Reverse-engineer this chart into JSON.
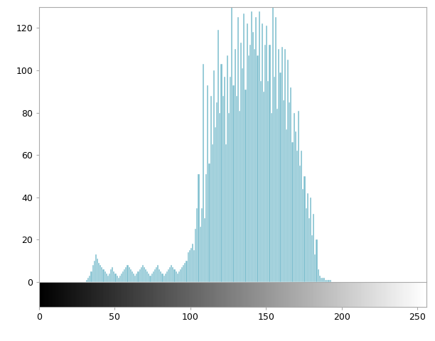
{
  "bar_color": "#7fbfcf",
  "bar_edge_color": "#ffffff",
  "bar_edge_linewidth": 0.3,
  "xlim": [
    0,
    256
  ],
  "xticks": [
    0,
    50,
    100,
    150,
    200,
    250
  ],
  "yticks": [
    0,
    20,
    40,
    60,
    80,
    100,
    120
  ],
  "background_color": "#ffffff",
  "figsize": [
    6.12,
    4.8
  ],
  "dpi": 100,
  "hist_values": [
    0,
    0,
    0,
    0,
    0,
    0,
    0,
    0,
    0,
    0,
    0,
    0,
    0,
    0,
    0,
    0,
    0,
    0,
    0,
    0,
    0,
    0,
    0,
    0,
    0,
    0,
    0,
    0,
    0,
    0,
    0,
    1,
    2,
    3,
    5,
    8,
    10,
    13,
    11,
    9,
    8,
    7,
    6,
    5,
    4,
    3,
    4,
    6,
    7,
    5,
    4,
    3,
    2,
    3,
    4,
    5,
    6,
    7,
    8,
    7,
    6,
    5,
    4,
    3,
    4,
    5,
    6,
    7,
    8,
    7,
    6,
    5,
    4,
    3,
    4,
    5,
    6,
    7,
    8,
    6,
    5,
    4,
    3,
    4,
    5,
    6,
    7,
    8,
    7,
    6,
    5,
    4,
    5,
    6,
    7,
    8,
    9,
    10,
    14,
    15,
    16,
    18,
    15,
    25,
    35,
    51,
    26,
    35,
    103,
    30,
    51,
    93,
    56,
    88,
    65,
    100,
    73,
    85,
    119,
    80,
    103,
    88,
    97,
    65,
    107,
    80,
    97,
    130,
    93,
    110,
    88,
    125,
    81,
    113,
    101,
    127,
    91,
    122,
    107,
    112,
    128,
    118,
    110,
    125,
    107,
    128,
    95,
    122,
    90,
    112,
    121,
    95,
    112,
    80,
    130,
    97,
    125,
    82,
    110,
    99,
    111,
    86,
    110,
    72,
    105,
    85,
    92,
    66,
    80,
    71,
    62,
    81,
    55,
    62,
    44,
    50,
    35,
    42,
    30,
    40,
    22,
    32,
    13,
    20,
    6,
    3,
    2,
    2,
    2,
    1,
    1,
    1,
    1,
    0,
    0,
    0,
    0,
    0,
    0,
    0,
    0,
    0,
    0,
    0,
    0,
    0,
    0,
    0,
    0,
    0,
    0,
    0,
    0,
    0,
    0,
    0,
    0,
    0,
    0,
    0,
    0,
    0,
    0,
    0,
    0,
    0,
    0,
    0,
    0,
    0,
    0,
    0,
    0,
    0,
    0,
    0,
    0,
    0,
    0,
    0,
    0,
    0,
    0,
    0,
    0,
    0,
    0,
    0,
    0,
    0,
    0,
    0,
    0,
    0,
    0,
    0
  ],
  "axis_linewidth": 0.8,
  "spine_color": "#aaaaaa"
}
